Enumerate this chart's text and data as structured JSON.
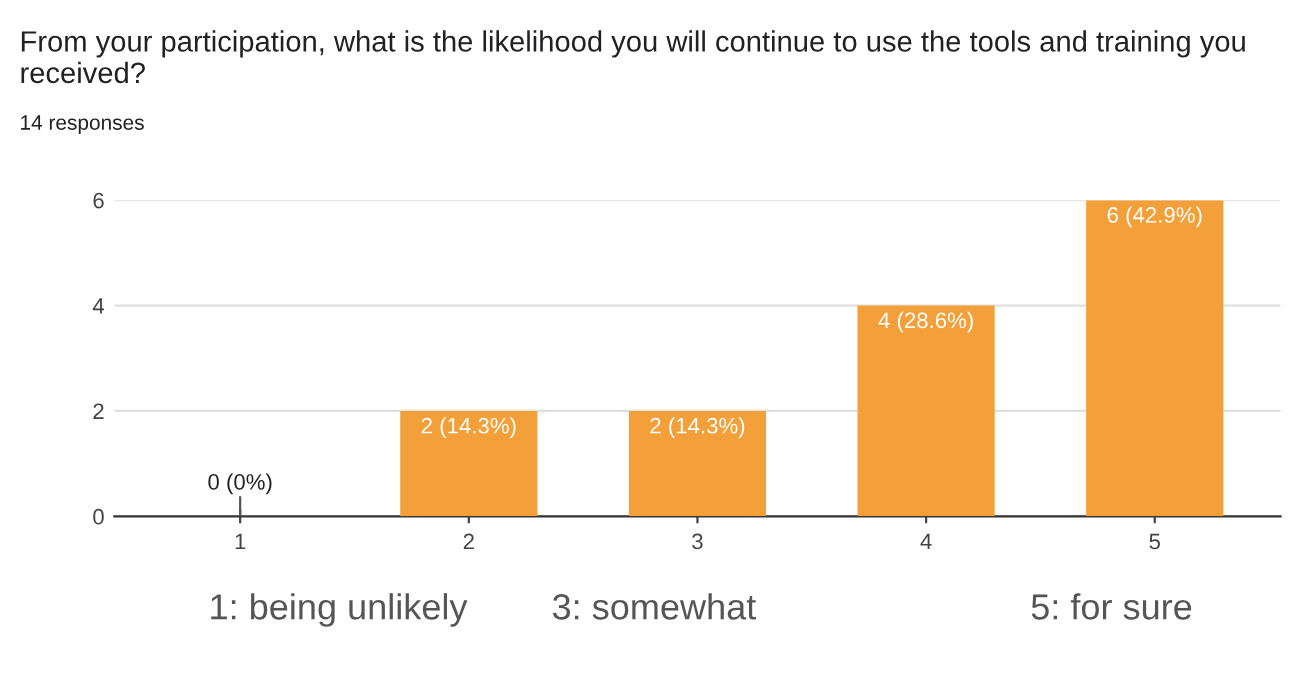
{
  "chart_data": {
    "type": "bar",
    "title": "From your participation, what is the likelihood you will continue to use the tools and training you received?",
    "subtitle": "14 responses",
    "categories": [
      "1",
      "2",
      "3",
      "4",
      "5"
    ],
    "values": [
      0,
      2,
      2,
      4,
      6
    ],
    "value_labels": [
      "0 (0%)",
      "2 (14.3%)",
      "2 (14.3%)",
      "4 (28.6%)",
      "6 (42.9%)"
    ],
    "color": "#f4a03a",
    "ylim": [
      0,
      6
    ],
    "yticks": [
      0,
      2,
      4,
      6
    ],
    "grid": "y",
    "annotations": [
      "1: being unlikely",
      "3: somewhat",
      "5: for sure"
    ]
  }
}
